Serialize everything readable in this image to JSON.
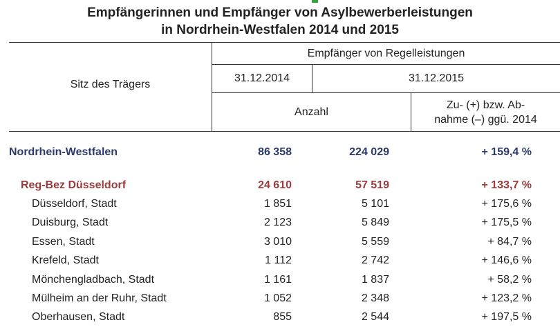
{
  "title": {
    "line1": "Empfängerinnen und Empfänger von Asylbewerberleistungen",
    "line2": "in Nordrhein-Westfalen 2014 und 2015"
  },
  "header": {
    "col_region": "Sitz des Trägers",
    "group": "Empfänger von Regelleistungen",
    "date1": "31.12.2014",
    "date2": "31.12.2015",
    "count": "Anzahl",
    "change_line1": "Zu- (+) bzw. Ab-",
    "change_line2": "nahme (–) ggü. 2014"
  },
  "colors": {
    "state": "#2c3a6b",
    "district": "#9b3b3b",
    "marker": "#2fa33a"
  },
  "rows": [
    {
      "name": "Nordrhein-Westfalen",
      "v2014": "86 358",
      "v2015": "224 029",
      "change": "+ 159,4 %"
    },
    {
      "name": "Reg-Bez Düsseldorf",
      "v2014": "24 610",
      "v2015": "57 519",
      "change": "+ 133,7 %"
    },
    {
      "name": "Düsseldorf, Stadt",
      "v2014": "1 851",
      "v2015": "5 101",
      "change": "+ 175,6 %"
    },
    {
      "name": "Duisburg, Stadt",
      "v2014": "2 123",
      "v2015": "5 849",
      "change": "+ 175,5 %"
    },
    {
      "name": "Essen, Stadt",
      "v2014": "3 010",
      "v2015": "5 559",
      "change": "+ 84,7 %"
    },
    {
      "name": "Krefeld, Stadt",
      "v2014": "1 112",
      "v2015": "2 742",
      "change": "+ 146,6 %"
    },
    {
      "name": "Mönchengladbach, Stadt",
      "v2014": "1 161",
      "v2015": "1 837",
      "change": "+ 58,2 %"
    },
    {
      "name": "Mülheim an der Ruhr, Stadt",
      "v2014": "1 052",
      "v2015": "2 348",
      "change": "+ 123,2 %"
    },
    {
      "name": "Oberhausen, Stadt",
      "v2014": "855",
      "v2015": "2 544",
      "change": "+ 197,5 %"
    }
  ]
}
